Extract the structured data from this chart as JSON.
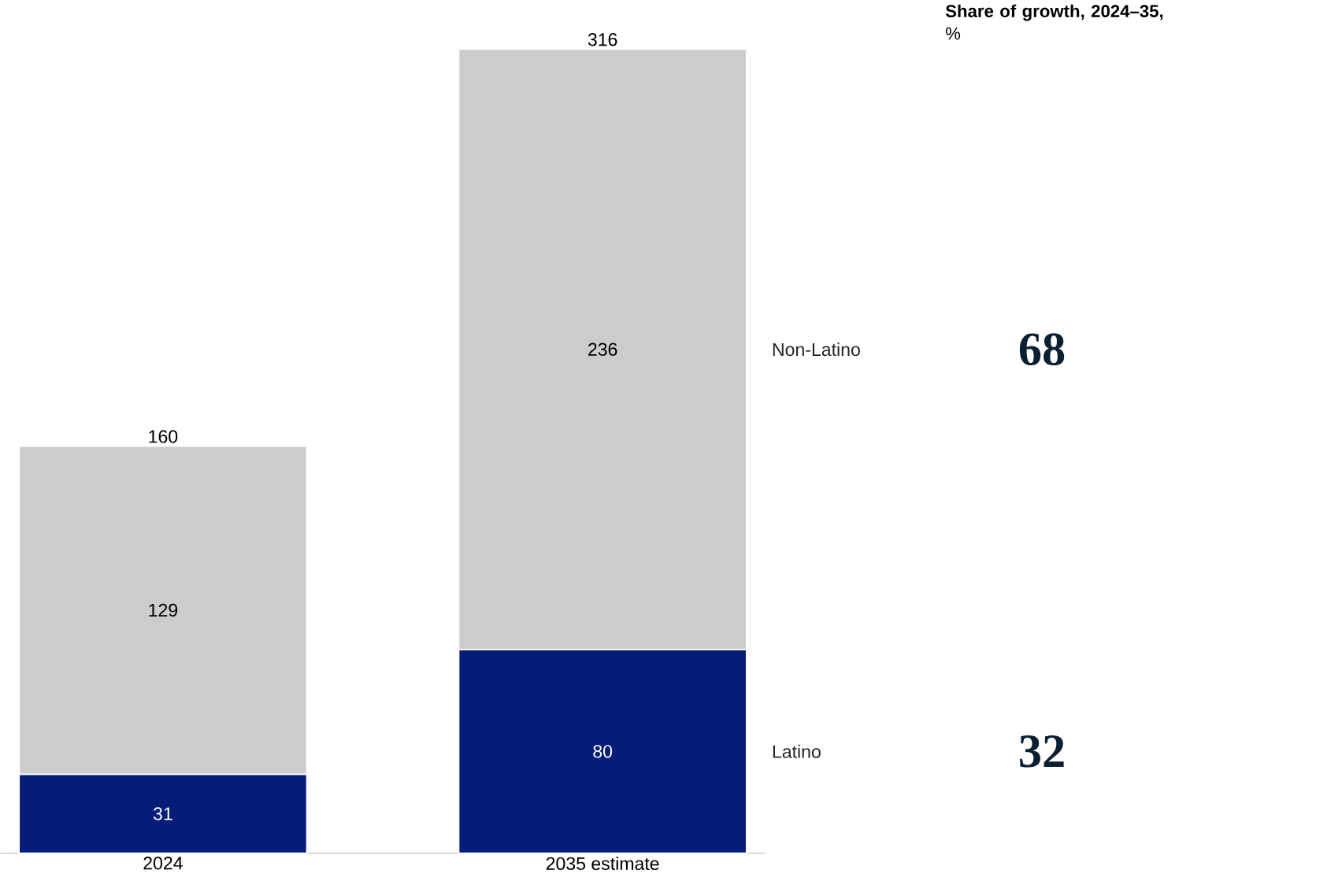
{
  "chart_data": {
    "type": "bar",
    "stacked": true,
    "data_labels": true,
    "categories": [
      "2024",
      "2035 estimate"
    ],
    "series": [
      {
        "name": "Latino",
        "color": "#051d78",
        "values": [
          31,
          80
        ]
      },
      {
        "name": "Non-Latino",
        "color": "#cccccc",
        "values": [
          129,
          236
        ]
      }
    ],
    "totals": [
      "160",
      "316"
    ],
    "annotations": [
      "**Share of growth, 2024–35,** %",
      "68",
      "32"
    ],
    "legend": false
  }
}
